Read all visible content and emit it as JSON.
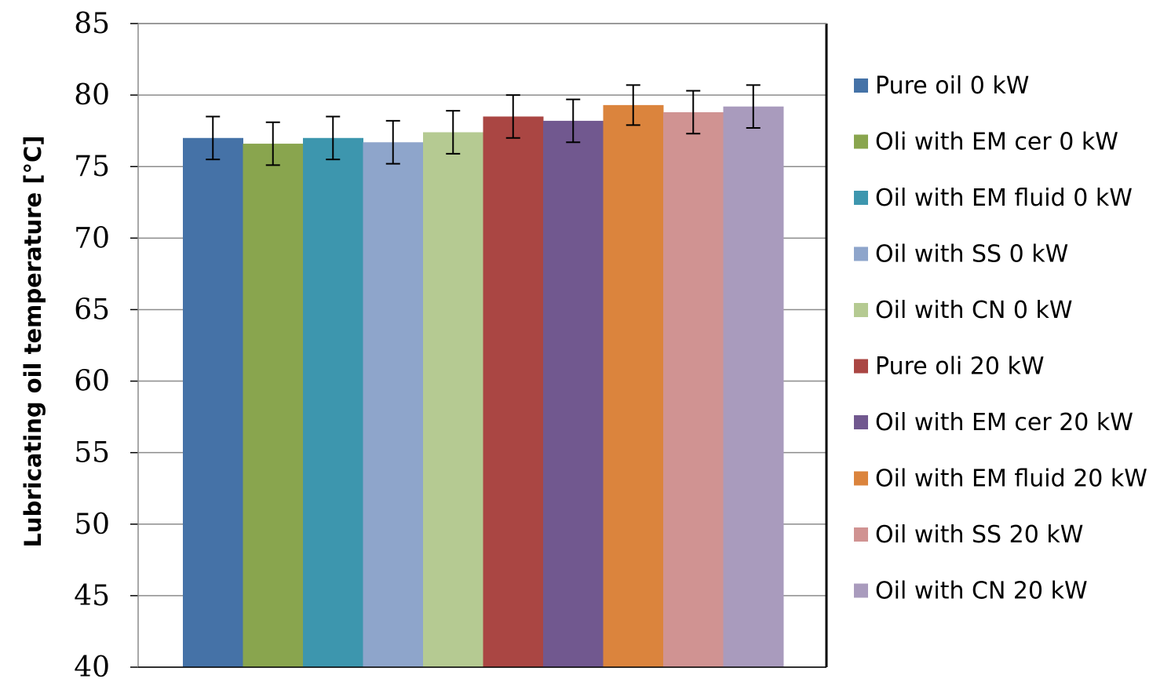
{
  "chart_data": {
    "type": "bar",
    "title": "",
    "xlabel": "",
    "ylabel": "Lubricating oil temperature [°C]",
    "ylim": [
      40,
      85
    ],
    "yticks": [
      40,
      45,
      50,
      55,
      60,
      65,
      70,
      75,
      80,
      85
    ],
    "grid": true,
    "legend_position": "right",
    "series": [
      {
        "name": "Pure oil 0 kW",
        "value": 77.0,
        "error": 1.5,
        "color": "#4572A7"
      },
      {
        "name": "Oli with EM cer 0 kW",
        "value": 76.6,
        "error": 1.5,
        "color": "#89A54E"
      },
      {
        "name": "Oil with EM fluid 0 kW",
        "value": 77.0,
        "error": 1.5,
        "color": "#3D96AE"
      },
      {
        "name": "Oil with SS 0 kW",
        "value": 76.7,
        "error": 1.5,
        "color": "#8EA5CB"
      },
      {
        "name": "Oil with CN 0 kW",
        "value": 77.4,
        "error": 1.5,
        "color": "#B5CA92"
      },
      {
        "name": "Pure oli 20 kW",
        "value": 78.5,
        "error": 1.5,
        "color": "#AA4643"
      },
      {
        "name": "Oil with EM cer 20 kW",
        "value": 78.2,
        "error": 1.5,
        "color": "#71588F"
      },
      {
        "name": "Oil with EM fluid 20 kW",
        "value": 79.3,
        "error": 1.4,
        "color": "#DB843D"
      },
      {
        "name": "Oil with SS 20 kW",
        "value": 78.8,
        "error": 1.5,
        "color": "#D09392"
      },
      {
        "name": "Oil with CN 20 kW",
        "value": 79.2,
        "error": 1.5,
        "color": "#A99BBD"
      }
    ]
  }
}
